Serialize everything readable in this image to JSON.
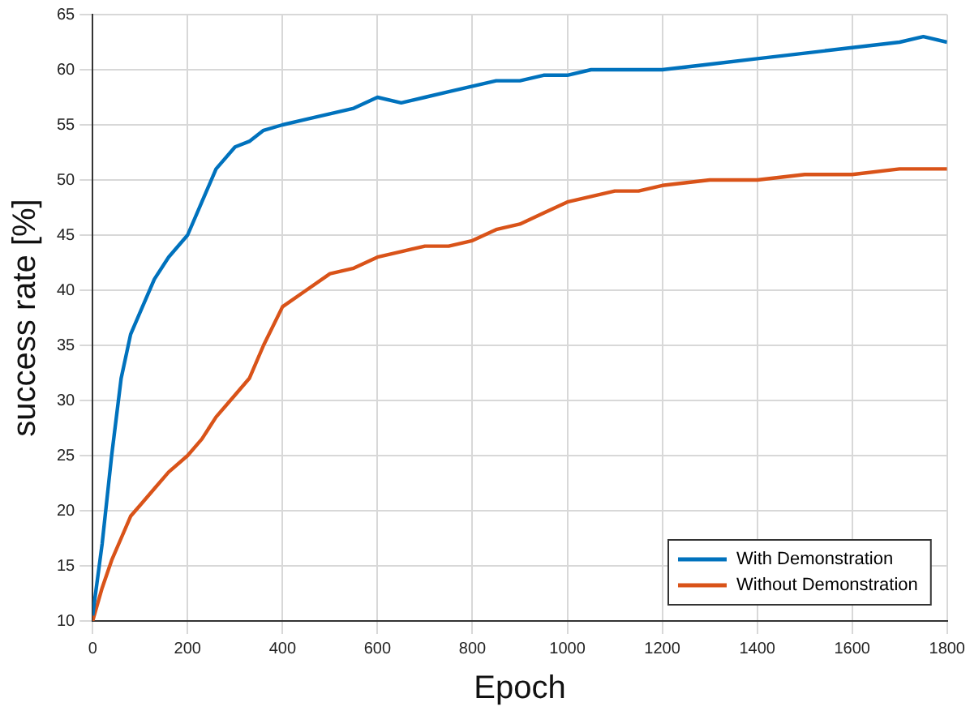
{
  "chart_data": {
    "type": "line",
    "xlabel": "Epoch",
    "ylabel": "success rate [%]",
    "x": [
      0,
      20,
      40,
      60,
      80,
      100,
      130,
      160,
      200,
      230,
      260,
      300,
      330,
      360,
      400,
      450,
      500,
      550,
      600,
      650,
      700,
      750,
      800,
      850,
      900,
      950,
      1000,
      1050,
      1100,
      1150,
      1200,
      1300,
      1400,
      1500,
      1600,
      1700,
      1750,
      1800
    ],
    "series": [
      {
        "name": "With Demonstration",
        "color": "#0072bd",
        "values": [
          10.5,
          17,
          25,
          32,
          36,
          38,
          41,
          43,
          45,
          48,
          51,
          53,
          53.5,
          54.5,
          55,
          55.5,
          56,
          56.5,
          57.5,
          57,
          57.5,
          58,
          58.5,
          59,
          59,
          59.5,
          59.5,
          60,
          60,
          60,
          60,
          60.5,
          61,
          61.5,
          62,
          62.5,
          63,
          62.5
        ]
      },
      {
        "name": "Without Demonstration",
        "color": "#d95319",
        "values": [
          10,
          13,
          15.5,
          17.5,
          19.5,
          20.5,
          22,
          23.5,
          25,
          26.5,
          28.5,
          30.5,
          32,
          35,
          38.5,
          40,
          41.5,
          42,
          43,
          43.5,
          44,
          44,
          44.5,
          45.5,
          46,
          47,
          48,
          48.5,
          49,
          49,
          49.5,
          50,
          50,
          50.5,
          50.5,
          51,
          51,
          51
        ]
      }
    ],
    "xlim": [
      0,
      1800
    ],
    "xticks": [
      0,
      200,
      400,
      600,
      800,
      1000,
      1200,
      1400,
      1600,
      1800
    ],
    "ylim": [
      10,
      65
    ],
    "yticks": [
      10,
      15,
      20,
      25,
      30,
      35,
      40,
      45,
      50,
      55,
      60,
      65
    ],
    "grid": true,
    "legend": "bottom right",
    "marker": "none",
    "line_style": "solid"
  }
}
